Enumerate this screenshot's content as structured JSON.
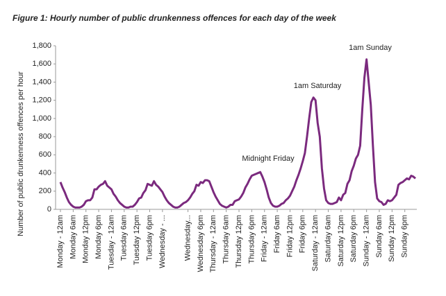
{
  "chart_data": {
    "type": "line",
    "title": "Figure 1: Hourly number of public drunkenness offences for each day of the week",
    "y_label": "Number of public drunkenness offences per hour",
    "annotations": [
      "Midnight Friday",
      "1am Saturday",
      "1am Sunday"
    ],
    "color": "#7b2a7e",
    "ylim": [
      0,
      1800
    ],
    "yticks": [
      0,
      200,
      400,
      600,
      800,
      {
        "value": 1000,
        "label": "1,000"
      },
      {
        "value": 1200,
        "label": "1,200"
      },
      {
        "value": 1400,
        "label": "1,400"
      },
      {
        "value": 1600,
        "label": "1,600"
      },
      {
        "value": 1800,
        "label": "1,800"
      }
    ],
    "categories": [
      "Monday - 12am",
      null,
      null,
      null,
      null,
      null,
      "Monday 6am",
      null,
      null,
      null,
      null,
      null,
      "Monday 12pm",
      null,
      null,
      null,
      null,
      null,
      "Monday 6pm",
      null,
      null,
      null,
      null,
      null,
      "Tuesday - 12am",
      null,
      null,
      null,
      null,
      null,
      "Tuesday 6am",
      null,
      null,
      null,
      null,
      null,
      "Tuesday 12pm",
      null,
      null,
      null,
      null,
      null,
      "Tuesday 6pm",
      null,
      null,
      null,
      null,
      null,
      "Wednesday - ...",
      null,
      null,
      null,
      null,
      null,
      null,
      null,
      null,
      null,
      null,
      null,
      "Wednesday...",
      null,
      null,
      null,
      null,
      null,
      "Wednesday 6pm",
      null,
      null,
      null,
      null,
      null,
      "Thursday - 12am",
      null,
      null,
      null,
      null,
      null,
      "Thursday 6am",
      null,
      null,
      null,
      null,
      null,
      "Thursday 12pm",
      null,
      null,
      null,
      null,
      null,
      "Thursday 6pm",
      null,
      null,
      null,
      null,
      null,
      "Friday - 12am",
      null,
      null,
      null,
      null,
      null,
      "Friday 6am",
      null,
      null,
      null,
      null,
      null,
      "Friday 12pm",
      null,
      null,
      null,
      null,
      null,
      "Friday 6pm",
      null,
      null,
      null,
      null,
      null,
      "Saturday - 12am",
      null,
      null,
      null,
      null,
      null,
      "Saturday 6am",
      null,
      null,
      null,
      null,
      null,
      "Saturday 12pm",
      null,
      null,
      null,
      null,
      null,
      "Saturday 6pm",
      null,
      null,
      null,
      null,
      null,
      "Sunday - 12am",
      null,
      null,
      null,
      null,
      null,
      "Sunday 6am",
      null,
      null,
      null,
      null,
      null,
      "Sunday 12pm",
      null,
      null,
      null,
      null,
      null,
      "Sunday 6pm",
      null,
      null,
      null,
      null,
      null
    ],
    "values": [
      300,
      240,
      190,
      130,
      80,
      50,
      30,
      20,
      20,
      20,
      30,
      50,
      90,
      100,
      100,
      130,
      220,
      220,
      250,
      270,
      280,
      310,
      260,
      240,
      220,
      170,
      140,
      100,
      70,
      50,
      30,
      20,
      20,
      30,
      30,
      50,
      80,
      120,
      130,
      180,
      210,
      280,
      270,
      260,
      310,
      270,
      250,
      220,
      190,
      140,
      100,
      70,
      50,
      30,
      20,
      20,
      30,
      50,
      70,
      80,
      100,
      130,
      170,
      200,
      270,
      260,
      300,
      290,
      320,
      320,
      310,
      250,
      190,
      140,
      100,
      60,
      40,
      30,
      20,
      30,
      50,
      50,
      90,
      100,
      110,
      140,
      180,
      240,
      280,
      330,
      370,
      380,
      390,
      400,
      410,
      360,
      300,
      220,
      130,
      70,
      40,
      30,
      30,
      40,
      60,
      70,
      100,
      120,
      150,
      200,
      250,
      320,
      380,
      450,
      530,
      620,
      800,
      1000,
      1180,
      1230,
      1200,
      950,
      800,
      450,
      230,
      100,
      70,
      60,
      60,
      70,
      80,
      130,
      100,
      160,
      180,
      280,
      320,
      420,
      480,
      560,
      600,
      700,
      1100,
      1450,
      1650,
      1400,
      1150,
      700,
      300,
      120,
      90,
      80,
      50,
      60,
      100,
      90,
      100,
      130,
      160,
      270,
      290,
      300,
      320,
      340,
      330,
      370,
      360,
      340
    ]
  }
}
